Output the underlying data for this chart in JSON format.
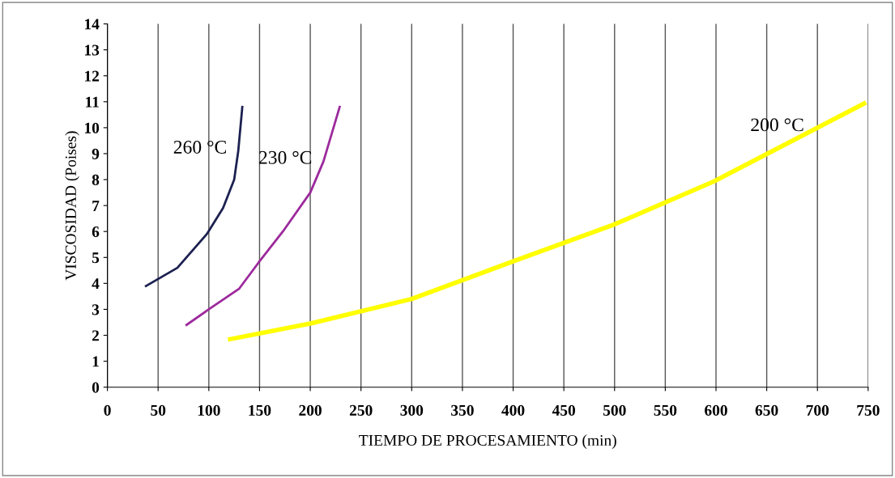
{
  "chart_data": {
    "type": "line",
    "xlabel": "TIEMPO DE PROCESAMIENTO (min)",
    "ylabel": "VISCOSIDAD (Poises)",
    "xlim": [
      0,
      750
    ],
    "xticks": [
      0,
      50,
      100,
      150,
      200,
      250,
      300,
      350,
      400,
      450,
      500,
      550,
      600,
      650,
      700,
      750
    ],
    "ylim": [
      0,
      14
    ],
    "yticks": [
      0,
      1,
      2,
      3,
      4,
      5,
      6,
      7,
      8,
      9,
      10,
      11,
      12,
      13,
      14
    ],
    "grid": "x",
    "legend": false,
    "marker": "none",
    "line_style": "solid",
    "series": [
      {
        "name": "260 °C",
        "color": "#1c2150",
        "x": [
          38,
          69,
          98,
          114,
          125,
          129,
          133
        ],
        "values": [
          3.9,
          4.6,
          5.9,
          6.9,
          8.0,
          9.1,
          10.8
        ]
      },
      {
        "name": "230 °C",
        "color": "#9c2a9c",
        "x": [
          78,
          100,
          130,
          149,
          173,
          200,
          213,
          229
        ],
        "values": [
          2.4,
          3.0,
          3.8,
          4.8,
          6.0,
          7.5,
          8.7,
          10.8
        ]
      },
      {
        "name": "200 °C",
        "color": "#ffff00",
        "x": [
          121,
          201,
          300,
          400,
          499,
          598,
          698,
          746
        ],
        "values": [
          1.85,
          2.46,
          3.4,
          4.85,
          6.26,
          7.93,
          9.96,
          10.93
        ]
      }
    ]
  }
}
